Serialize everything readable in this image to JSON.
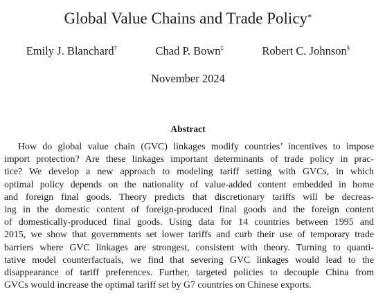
{
  "title": "Global Value Chains and Trade Policy",
  "title_mark": "*",
  "authors": [
    {
      "name": "Emily J. Blanchard",
      "mark": "†"
    },
    {
      "name": "Chad P. Bown",
      "mark": "‡"
    },
    {
      "name": "Robert C. Johnson",
      "mark": "§"
    }
  ],
  "date": "November 2024",
  "abstract": {
    "heading": "Abstract",
    "lines": [
      "How do global value chain (GVC) linkages modify countries’ incentives to impose",
      "import protection? Are these linkages important determinants of trade policy in prac-",
      "tice? We develop a new approach to modeling tariff setting with GVCs, in which",
      "optimal policy depends on the nationality of value-added content embedded in home",
      "and foreign final goods. Theory predicts that discretionary tariffs will be decreas-",
      "ing in the domestic content of foreign-produced final goods and the foreign content",
      "of domestically-produced final goods. Using data for 14 countries between 1995 and",
      "2015, we show that governments set lower tariffs and curb their use of temporary trade",
      "barriers where GVC linkages are strongest, consistent with theory. Turning to quanti-",
      "tative model counterfactuals, we find that severing GVC linkages would lead to the",
      "disappearance of tariff preferences. Further, targeted policies to decouple China from",
      "GVCs would increase the optimal tariff set by G7 countries on Chinese exports."
    ]
  }
}
